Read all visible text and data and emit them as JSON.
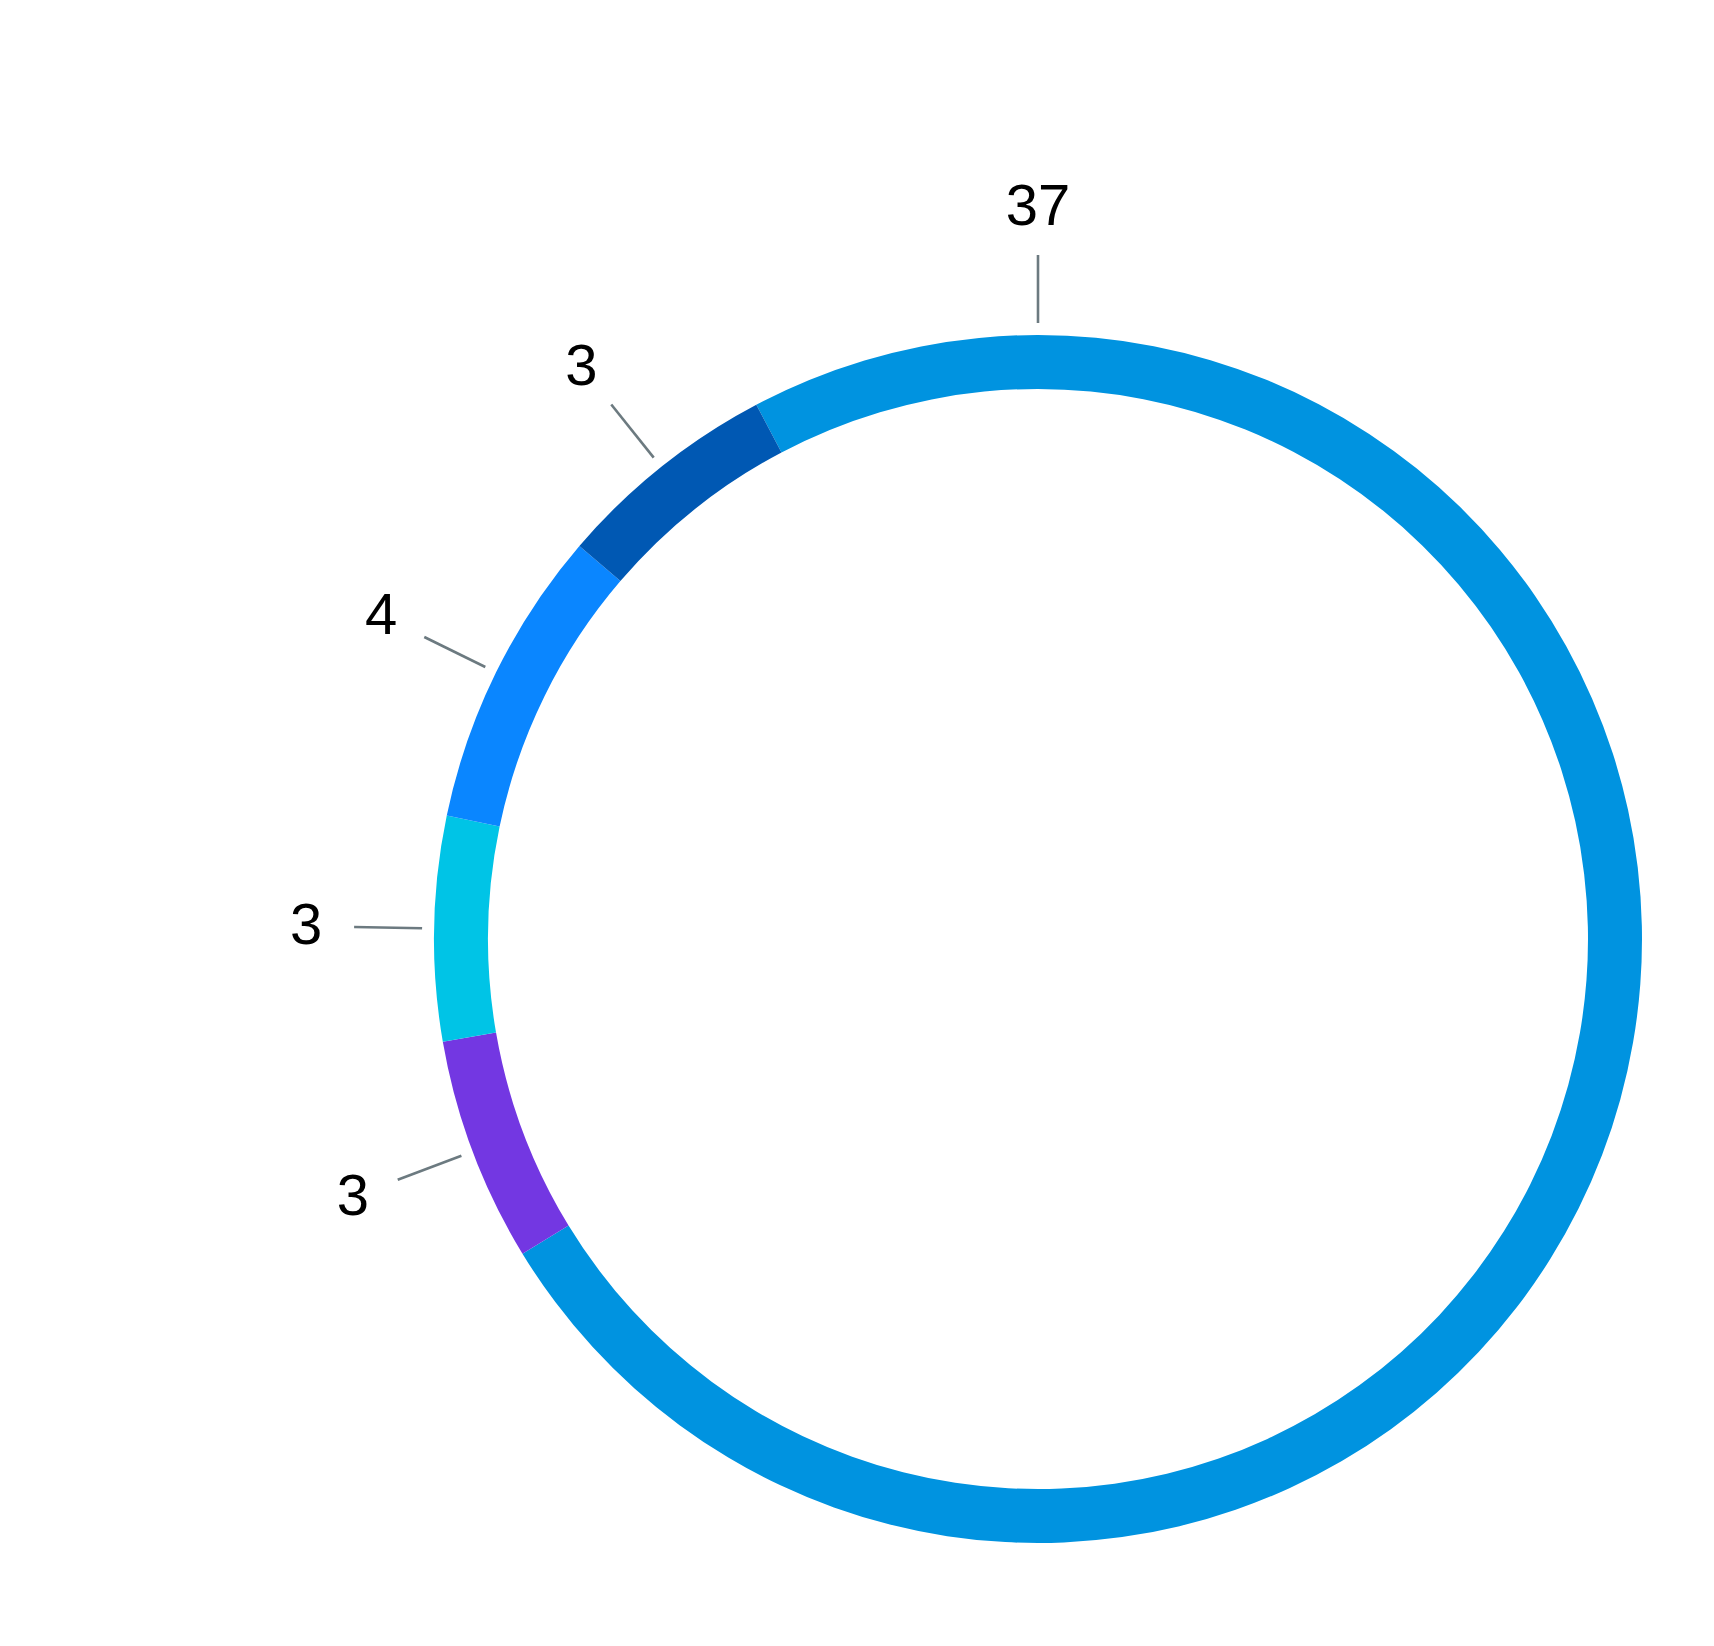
{
  "chart_data": {
    "type": "donut",
    "categories": [
      null,
      null,
      null,
      null,
      null
    ],
    "values": [
      37,
      3,
      3,
      4,
      3
    ],
    "colors": [
      "#0093e0",
      "#7337e2",
      "#00c4e6",
      "#0a86ff",
      "#0058b3"
    ],
    "data_labels": true
  }
}
